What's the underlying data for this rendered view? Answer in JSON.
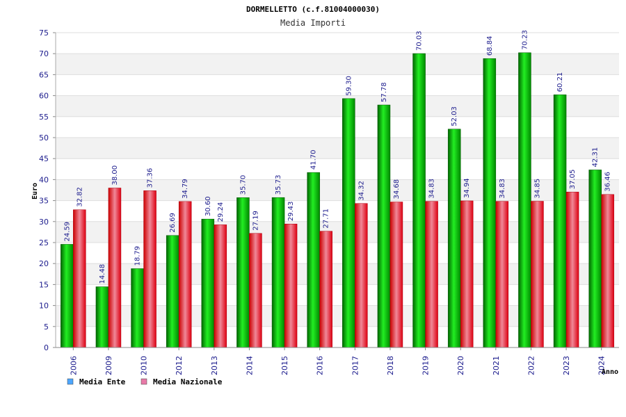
{
  "chart_data": {
    "type": "bar",
    "title": "DORMELLETTO (c.f.81004000030)",
    "subtitle": "Media Importi",
    "xlabel": "Anno",
    "ylabel": "Euro",
    "ylim": [
      0,
      75
    ],
    "ytick_step": 5,
    "grid": true,
    "legend_position": "bottom-left",
    "categories": [
      "2006",
      "2009",
      "2010",
      "2012",
      "2013",
      "2014",
      "2015",
      "2016",
      "2017",
      "2018",
      "2019",
      "2020",
      "2021",
      "2022",
      "2023",
      "2024"
    ],
    "series": [
      {
        "name": "Media Ente",
        "legend_color": "#4da6ff",
        "bar_color": "#00c000",
        "values": [
          24.59,
          14.48,
          18.79,
          26.69,
          30.6,
          35.7,
          35.73,
          41.7,
          59.3,
          57.78,
          70.03,
          52.03,
          68.84,
          70.23,
          60.21,
          42.31
        ],
        "labels": [
          "24.59",
          "14.48",
          "18.79",
          "26.69",
          "30.60",
          "35.70",
          "35.73",
          "41.70",
          "59.30",
          "57.78",
          "70.03",
          "52.03",
          "68.84",
          "70.23",
          "60.21",
          "42.31"
        ]
      },
      {
        "name": "Media Nazionale",
        "legend_color": "#e87aa8",
        "bar_color": "#e8102a",
        "values": [
          32.82,
          38.0,
          37.36,
          34.79,
          29.24,
          27.19,
          29.43,
          27.71,
          34.32,
          34.68,
          34.83,
          34.94,
          34.83,
          34.85,
          37.05,
          36.46
        ],
        "labels": [
          "32.82",
          "38.00",
          "37.36",
          "34.79",
          "29.24",
          "27.19",
          "29.43",
          "27.71",
          "34.32",
          "34.68",
          "34.83",
          "34.94",
          "34.83",
          "34.85",
          "37.05",
          "36.46"
        ]
      }
    ]
  }
}
